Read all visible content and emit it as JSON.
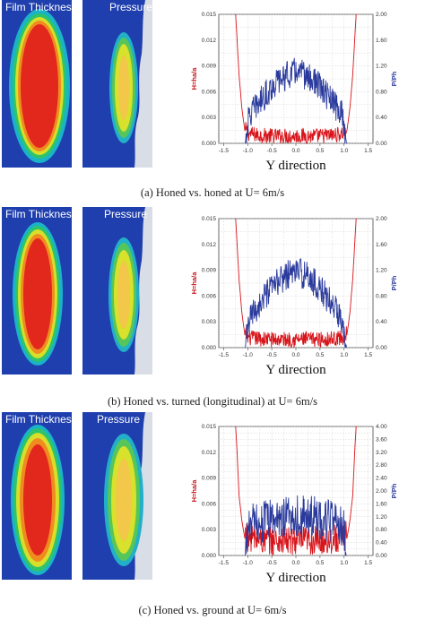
{
  "colors": {
    "map_background": "#1f3fae",
    "left_series": "#d8141a",
    "right_series": "#2a3a9c",
    "axis_left_label": "#c41016",
    "axis_right_label": "#2a3a9c",
    "grid": "#c8c8c8"
  },
  "panels": [
    {
      "film_label": "Film Thickness",
      "pressure_label": "Pressure",
      "caption": "(a)  Honed vs. honed at U= 6m/s"
    },
    {
      "film_label": "Film Thickness",
      "pressure_label": "Pressure",
      "caption": "(b)  Honed vs. turned (longitudinal) at U= 6m/s"
    },
    {
      "film_label": "Film Thickness",
      "pressure_label": "Pressure",
      "caption": "(c)  Honed vs. ground at U= 6m/s"
    }
  ],
  "chart_data": [
    {
      "type": "line",
      "xlabel": "Y direction",
      "ylabel_left": "H=ha/a",
      "ylabel_right": "P/Ph",
      "xlim": [
        -1.6,
        1.6
      ],
      "ylim_left": [
        0,
        0.015
      ],
      "ylim_right": [
        0,
        2.0
      ],
      "x_ticks": [
        "-1.5",
        "-1.0",
        "-0.5",
        "0.0",
        "0.5",
        "1.0",
        "1.5"
      ],
      "y_left_ticks": [
        "0.000",
        "0.003",
        "0.006",
        "0.009",
        "0.012",
        "0.015"
      ],
      "y_right_ticks": [
        "0.00",
        "0.40",
        "0.80",
        "1.20",
        "1.60",
        "2.00"
      ],
      "grid": true,
      "series": [
        {
          "axis": "left",
          "points": [
            [
              -1.25,
              0.015
            ],
            [
              -1.22,
              0.012
            ],
            [
              -1.18,
              0.008
            ],
            [
              -1.12,
              0.004
            ],
            [
              -1.06,
              0.0015
            ],
            [
              -1.0,
              0.0008
            ],
            [
              -0.8,
              0.0006
            ],
            [
              -0.5,
              0.0005
            ],
            [
              -0.2,
              0.0005
            ],
            [
              0.0,
              0.0005
            ],
            [
              0.2,
              0.0005
            ],
            [
              0.5,
              0.0005
            ],
            [
              0.8,
              0.0006
            ],
            [
              1.0,
              0.0008
            ],
            [
              1.06,
              0.0015
            ],
            [
              1.12,
              0.004
            ],
            [
              1.18,
              0.008
            ],
            [
              1.22,
              0.012
            ],
            [
              1.25,
              0.015
            ]
          ]
        },
        {
          "axis": "right",
          "points": [
            [
              -1.05,
              0
            ],
            [
              -1.0,
              0.3
            ],
            [
              -0.95,
              0.45
            ],
            [
              -0.8,
              0.6
            ],
            [
              -0.6,
              0.78
            ],
            [
              -0.4,
              0.95
            ],
            [
              -0.2,
              1.05
            ],
            [
              0.0,
              1.12
            ],
            [
              0.2,
              1.05
            ],
            [
              0.4,
              0.95
            ],
            [
              0.6,
              0.78
            ],
            [
              0.8,
              0.6
            ],
            [
              0.95,
              0.45
            ],
            [
              1.0,
              0.3
            ],
            [
              1.05,
              0
            ]
          ]
        }
      ]
    },
    {
      "type": "line",
      "xlabel": "Y direction",
      "ylabel_left": "H=ha/a",
      "ylabel_right": "P/Ph",
      "xlim": [
        -1.6,
        1.6
      ],
      "ylim_left": [
        0,
        0.015
      ],
      "ylim_right": [
        0,
        2.0
      ],
      "x_ticks": [
        "-1.5",
        "-1.0",
        "-0.5",
        "0.0",
        "0.5",
        "1.0",
        "1.5"
      ],
      "y_left_ticks": [
        "0.000",
        "0.003",
        "0.006",
        "0.009",
        "0.012",
        "0.015"
      ],
      "y_right_ticks": [
        "0.00",
        "0.40",
        "0.80",
        "1.20",
        "1.60",
        "2.00"
      ],
      "grid": true,
      "series": [
        {
          "axis": "left",
          "points": [
            [
              -1.25,
              0.015
            ],
            [
              -1.22,
              0.012
            ],
            [
              -1.18,
              0.008
            ],
            [
              -1.12,
              0.004
            ],
            [
              -1.06,
              0.0015
            ],
            [
              -1.0,
              0.0008
            ],
            [
              -0.8,
              0.0007
            ],
            [
              -0.5,
              0.0006
            ],
            [
              -0.2,
              0.0006
            ],
            [
              0.0,
              0.0006
            ],
            [
              0.2,
              0.0006
            ],
            [
              0.5,
              0.0006
            ],
            [
              0.8,
              0.0007
            ],
            [
              1.0,
              0.0008
            ],
            [
              1.06,
              0.0015
            ],
            [
              1.12,
              0.004
            ],
            [
              1.18,
              0.008
            ],
            [
              1.22,
              0.012
            ],
            [
              1.25,
              0.015
            ]
          ]
        },
        {
          "axis": "right",
          "points": [
            [
              -1.05,
              0
            ],
            [
              -1.0,
              0.3
            ],
            [
              -0.95,
              0.45
            ],
            [
              -0.8,
              0.62
            ],
            [
              -0.6,
              0.82
            ],
            [
              -0.4,
              1.0
            ],
            [
              -0.2,
              1.12
            ],
            [
              0.0,
              1.2
            ],
            [
              0.2,
              1.12
            ],
            [
              0.4,
              1.0
            ],
            [
              0.6,
              0.82
            ],
            [
              0.8,
              0.62
            ],
            [
              0.95,
              0.45
            ],
            [
              1.0,
              0.3
            ],
            [
              1.05,
              0
            ]
          ]
        }
      ]
    },
    {
      "type": "line",
      "xlabel": "Y direction",
      "ylabel_left": "H=ha/a",
      "ylabel_right": "P/Ph",
      "xlim": [
        -1.6,
        1.6
      ],
      "ylim_left": [
        0,
        0.015
      ],
      "ylim_right": [
        0,
        4.2
      ],
      "x_ticks": [
        "-1.5",
        "-1.0",
        "-0.5",
        "0.0",
        "0.5",
        "1.0",
        "1.5"
      ],
      "y_left_ticks": [
        "0.000",
        "0.003",
        "0.006",
        "0.009",
        "0.012",
        "0.015"
      ],
      "y_right_ticks": [
        "0.00",
        "0.40",
        "0.80",
        "1.20",
        "1.60",
        "2.00",
        "2.40",
        "2.80",
        "3.20",
        "3.60",
        "4.00"
      ],
      "grid": true,
      "series": [
        {
          "axis": "left",
          "points": [
            [
              -1.25,
              0.015
            ],
            [
              -1.22,
              0.012
            ],
            [
              -1.18,
              0.007
            ],
            [
              -1.12,
              0.004
            ],
            [
              -1.06,
              0.002
            ],
            [
              -1.0,
              0.0015
            ],
            [
              -0.8,
              0.0012
            ],
            [
              -0.5,
              0.001
            ],
            [
              -0.2,
              0.001
            ],
            [
              0.0,
              0.001
            ],
            [
              0.2,
              0.001
            ],
            [
              0.5,
              0.001
            ],
            [
              0.8,
              0.0012
            ],
            [
              1.0,
              0.0015
            ],
            [
              1.06,
              0.002
            ],
            [
              1.12,
              0.004
            ],
            [
              1.18,
              0.007
            ],
            [
              1.22,
              0.012
            ],
            [
              1.25,
              0.015
            ]
          ]
        },
        {
          "axis": "right",
          "points": [
            [
              -1.05,
              0
            ],
            [
              -1.0,
              0.8
            ],
            [
              -0.9,
              1.0
            ],
            [
              -0.7,
              1.1
            ],
            [
              -0.5,
              1.2
            ],
            [
              -0.3,
              1.25
            ],
            [
              0.0,
              1.3
            ],
            [
              0.3,
              1.25
            ],
            [
              0.5,
              1.2
            ],
            [
              0.7,
              1.1
            ],
            [
              0.9,
              1.0
            ],
            [
              1.0,
              0.8
            ],
            [
              1.05,
              0
            ]
          ]
        }
      ]
    }
  ]
}
